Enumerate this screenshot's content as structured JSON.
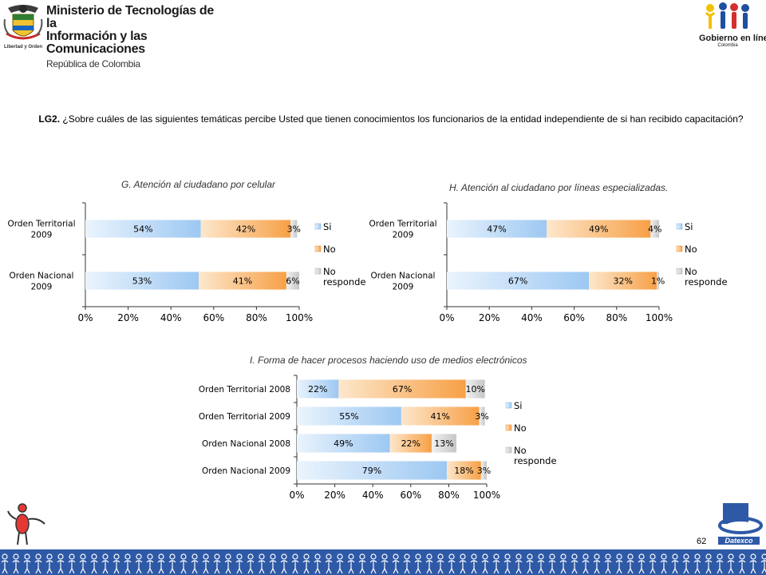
{
  "header": {
    "ministry_line1": "Ministerio de Tecnologías de la",
    "ministry_line2": "Información y las Comunicaciones",
    "ministry_line3": "República de Colombia",
    "coat_motto": "Libertad y Orden",
    "gov_logo_text": "Gobierno en línea",
    "gov_logo_sub": "Colombia"
  },
  "question": {
    "code": "LG2.",
    "text": "¿Sobre cuáles de las siguientes temáticas percibe Usted que tienen conocimientos los funcionarios de la entidad independiente de si han recibido capacitación?"
  },
  "legend": [
    "Si",
    "No",
    "No responde"
  ],
  "colors": {
    "si": "#9dc8f2",
    "no": "#f7a046",
    "nr": "#c6c6c6",
    "footer": "#2e59a6"
  },
  "chart_data": [
    {
      "type": "bar",
      "orientation": "horizontal",
      "stacked": "percent",
      "title": "G. Atención al ciudadano por celular",
      "categories": [
        "Orden Territorial 2009",
        "Orden Nacional 2009"
      ],
      "series": [
        {
          "name": "Si",
          "values": [
            54,
            53
          ],
          "labels": [
            "54%",
            "53%"
          ]
        },
        {
          "name": "No",
          "values": [
            42,
            41
          ],
          "labels": [
            "42%",
            "41%"
          ]
        },
        {
          "name": "No responde",
          "values": [
            3,
            6
          ],
          "labels": [
            "3%",
            "6%"
          ]
        }
      ],
      "xticks": [
        "0%",
        "20%",
        "40%",
        "60%",
        "80%",
        "100%"
      ],
      "xlim": [
        0,
        100
      ],
      "legend_position": "right"
    },
    {
      "type": "bar",
      "orientation": "horizontal",
      "stacked": "percent",
      "title": "H. Atención al ciudadano por líneas especializadas.",
      "categories": [
        "Orden Territorial 2009",
        "Orden Nacional 2009"
      ],
      "series": [
        {
          "name": "Si",
          "values": [
            47,
            67
          ],
          "labels": [
            "47%",
            "67%"
          ]
        },
        {
          "name": "No",
          "values": [
            49,
            32
          ],
          "labels": [
            "49%",
            "32%"
          ]
        },
        {
          "name": "No responde",
          "values": [
            4,
            1
          ],
          "labels": [
            "4%",
            "1%"
          ]
        }
      ],
      "xticks": [
        "0%",
        "20%",
        "40%",
        "60%",
        "80%",
        "100%"
      ],
      "xlim": [
        0,
        100
      ],
      "legend_position": "right"
    },
    {
      "type": "bar",
      "orientation": "horizontal",
      "stacked": "percent",
      "title": "I. Forma de hacer procesos haciendo uso de medios electrónicos",
      "categories": [
        "Orden Territorial 2008",
        "Orden Territorial 2009",
        "Orden Nacional 2008",
        "Orden Nacional 2009"
      ],
      "series": [
        {
          "name": "Si",
          "values": [
            22,
            55,
            49,
            79
          ],
          "labels": [
            "22%",
            "55%",
            "49%",
            "79%"
          ]
        },
        {
          "name": "No",
          "values": [
            67,
            41,
            22,
            18
          ],
          "labels": [
            "67%",
            "41%",
            "22%",
            "18%"
          ]
        },
        {
          "name": "No responde",
          "values": [
            10,
            3,
            13,
            3
          ],
          "labels": [
            "10%",
            "3%",
            "13%",
            "3%"
          ]
        }
      ],
      "xticks": [
        "0%",
        "20%",
        "40%",
        "60%",
        "80%",
        "100%"
      ],
      "xlim": [
        0,
        100
      ],
      "legend_position": "right"
    }
  ],
  "page": {
    "number": "62"
  },
  "footer": {
    "brand": "Datexco"
  }
}
